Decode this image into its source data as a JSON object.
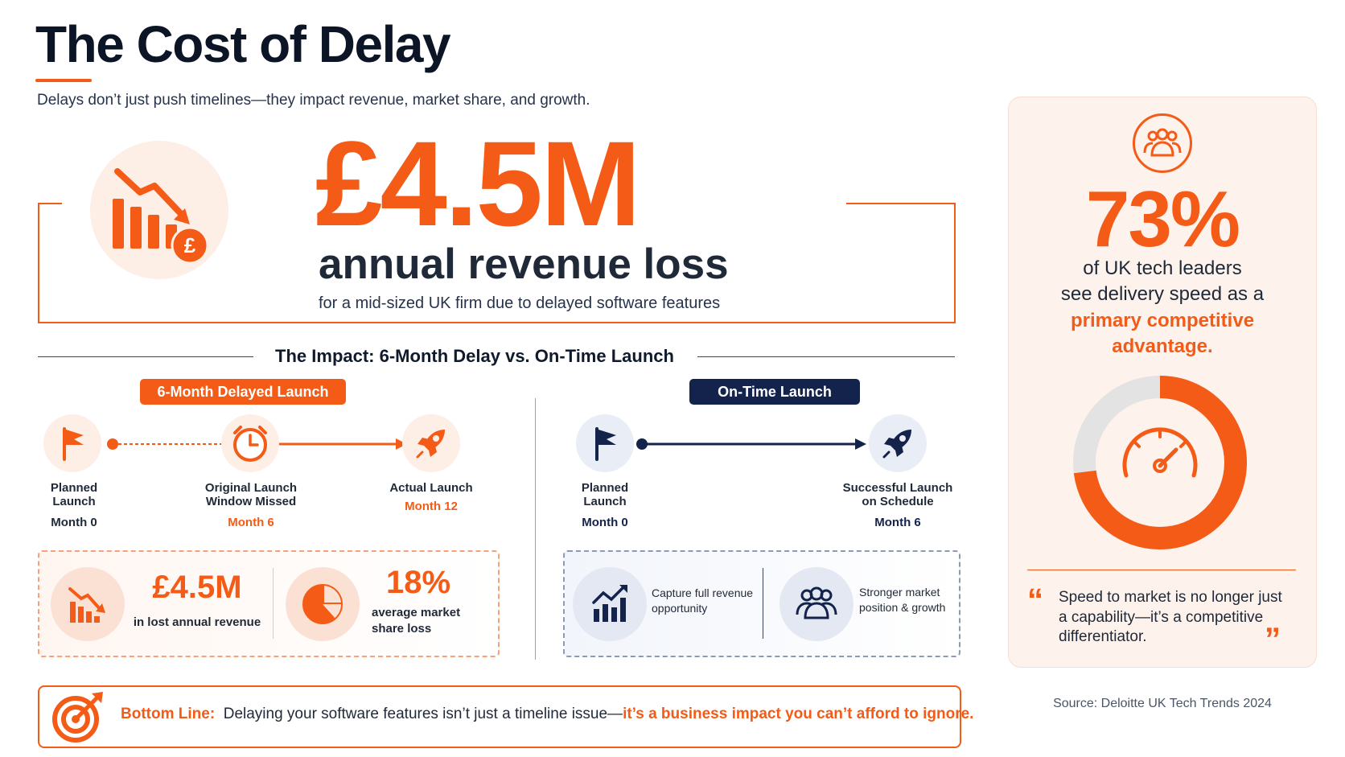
{
  "header": {
    "title": "The Cost of Delay",
    "subtitle": "Delays don’t just push timelines—they impact revenue, market share, and growth."
  },
  "hero": {
    "value": "£4.5M",
    "headline": "annual revenue loss",
    "note": "for a mid-sized UK firm due to delayed software features"
  },
  "impact": {
    "title": "The Impact: 6-Month Delay vs. On-Time Launch",
    "delayed": {
      "tag": "6-Month Delayed Launch",
      "steps": [
        {
          "label": "Planned\nLaunch",
          "month": "Month 0"
        },
        {
          "label": "Original Launch\nWindow Missed",
          "month": "Month 6"
        },
        {
          "label": "Actual Launch",
          "month": "Month 12"
        }
      ],
      "stat1_value": "£4.5M",
      "stat1_caption": "in lost annual revenue",
      "stat2_value": "18%",
      "stat2_caption": "average market\nshare loss"
    },
    "ontime": {
      "tag": "On-Time Launch",
      "steps": [
        {
          "label": "Planned\nLaunch",
          "month": "Month 0"
        },
        {
          "label": "Successful Launch\non Schedule",
          "month": "Month 6"
        }
      ],
      "benefit1": "Capture full revenue\nopportunity",
      "benefit2": "Stronger market\nposition & growth"
    }
  },
  "bottom_line": {
    "lead": "Bottom Line:",
    "text": "Delaying your software features isn’t just a timeline issue—",
    "emphasis": "it’s a business impact you can’t afford to ignore."
  },
  "sidebar": {
    "percent": "73%",
    "percent_value": 73,
    "line1": "of UK tech leaders",
    "line2": "see delivery speed as a",
    "highlight": "primary competitive advantage.",
    "quote": "Speed to market is no longer just a capability—it’s a competitive differentiator.",
    "quote_open": "“",
    "quote_close": "”"
  },
  "source": "Source: Deloitte UK Tech Trends 2024",
  "colors": {
    "accent": "#f35b16",
    "navy": "#14234b",
    "track": "#e3e3e3"
  }
}
